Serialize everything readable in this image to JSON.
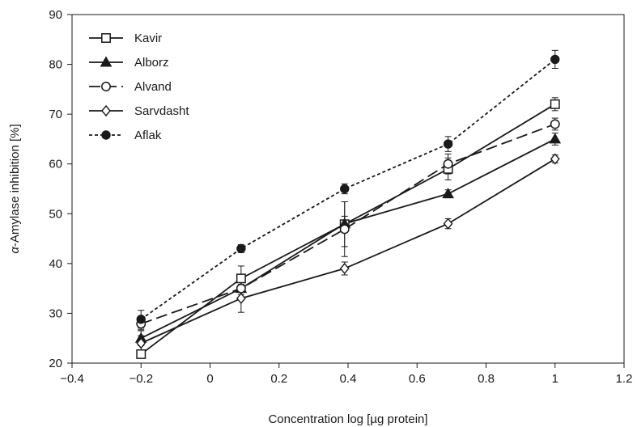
{
  "chart_data": {
    "type": "line",
    "xlabel": "Concentration log [µg protein]",
    "ylabel_prefix": "α",
    "ylabel_rest": "-Amylase inhibition [%]",
    "xlim": [
      -0.4,
      1.2
    ],
    "ylim": [
      20,
      90
    ],
    "xticks": [
      -0.4,
      -0.2,
      0,
      0.2,
      0.4,
      0.6,
      0.8,
      1,
      1.2
    ],
    "xtick_labels": [
      "−0.4",
      "−0.2",
      "0",
      "0.2",
      "0.4",
      "0.6",
      "0.8",
      "1",
      "1.2"
    ],
    "yticks": [
      20,
      30,
      40,
      50,
      60,
      70,
      80,
      90
    ],
    "ytick_labels": [
      "20",
      "30",
      "40",
      "50",
      "60",
      "70",
      "80",
      "90"
    ],
    "grid": false,
    "legend_position": "top-left",
    "x": [
      -0.2,
      0.09,
      0.39,
      0.69,
      1.0
    ],
    "series": [
      {
        "name": "Kavir",
        "marker": "square-open",
        "dash": "solid",
        "values": [
          21.8,
          37.0,
          47.9,
          59.0,
          72.0
        ],
        "errors": [
          0.8,
          2.5,
          4.5,
          2.2,
          1.3
        ]
      },
      {
        "name": "Alborz",
        "marker": "triangle-filled",
        "dash": "solid",
        "values": [
          25.0,
          35.0,
          48.0,
          54.0,
          65.0
        ],
        "errors": [
          1.5,
          1.2,
          1.5,
          0.8,
          1.2
        ]
      },
      {
        "name": "Alvand",
        "marker": "circle-open",
        "dash": "longdash",
        "values": [
          27.9,
          35.0,
          46.9,
          60.0,
          68.0
        ],
        "errors": [
          1.2,
          2.0,
          5.5,
          2.0,
          1.2
        ]
      },
      {
        "name": "Sarvdasht",
        "marker": "diamond-open",
        "dash": "solid",
        "values": [
          24.0,
          33.0,
          39.0,
          48.0,
          61.0
        ],
        "errors": [
          1.5,
          2.8,
          1.3,
          1.0,
          0.8
        ]
      },
      {
        "name": "Aflak",
        "marker": "circle-filled",
        "dash": "dotted",
        "values": [
          28.8,
          43.0,
          55.0,
          64.0,
          81.0
        ],
        "errors": [
          1.8,
          0.8,
          1.0,
          1.5,
          1.8
        ]
      }
    ],
    "colors": {
      "line": "#1a1a1a",
      "axis": "#1a1a1a",
      "background": "#ffffff"
    }
  }
}
